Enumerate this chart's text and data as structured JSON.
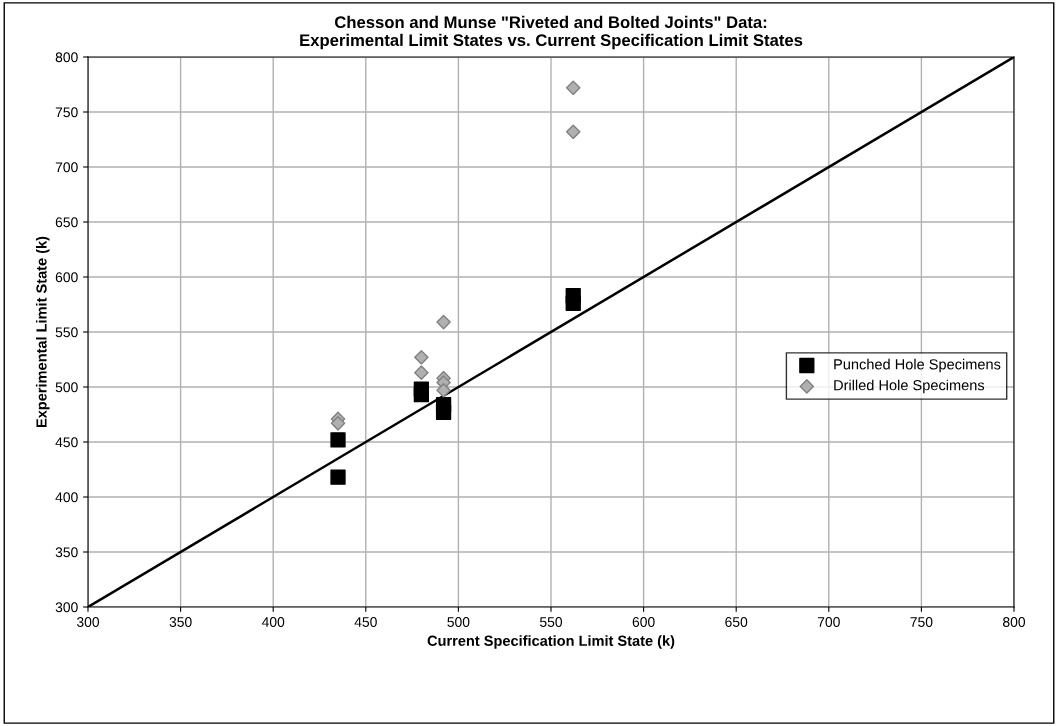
{
  "chart_data": {
    "type": "scatter",
    "title": "Chesson and Munse \"Riveted and Bolted Joints\" Data:\nExperimental Limit States vs. Current Specification Limit States",
    "xlabel": "Current Specification Limit State (k)",
    "ylabel": "Experimental Limit State (k)",
    "xlim": [
      300,
      800
    ],
    "ylim": [
      300,
      800
    ],
    "xticks": [
      300,
      350,
      400,
      450,
      500,
      550,
      600,
      650,
      700,
      750,
      800
    ],
    "yticks": [
      300,
      350,
      400,
      450,
      500,
      550,
      600,
      650,
      700,
      750,
      800
    ],
    "grid": true,
    "legend": "right",
    "series": [
      {
        "name": "Punched Hole Specimens",
        "marker": "square",
        "color": "#000000",
        "x": [
          435,
          435,
          480,
          480,
          492,
          492,
          562,
          562
        ],
        "values": [
          452,
          418,
          498,
          493,
          484,
          477,
          583,
          576
        ]
      },
      {
        "name": "Drilled Hole Specimens",
        "marker": "diamond",
        "color": "#b0b0b0",
        "x": [
          435,
          435,
          480,
          480,
          492,
          492,
          492,
          492,
          562,
          562
        ],
        "values": [
          471,
          467,
          527,
          513,
          559,
          508,
          504,
          497,
          772,
          732
        ]
      },
      {
        "type": "line",
        "color": "#000000",
        "marker": "none",
        "line_style": "solid",
        "x": [
          300,
          800
        ],
        "values": [
          300,
          800
        ]
      }
    ]
  }
}
